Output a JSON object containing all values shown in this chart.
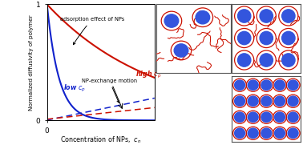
{
  "fig_width": 3.78,
  "fig_height": 1.81,
  "dpi": 100,
  "bg_color": "#ffffff",
  "plot_bg": "#ffffff",
  "red_color": "#cc1100",
  "blue_color": "#0022cc",
  "high_cp_solid_color": "#cc1100",
  "low_cp_solid_color": "#1122cc",
  "dash_red_color": "#cc1100",
  "dash_blue_color": "#1122cc",
  "ylabel": "Normalized diffusivity of polymer",
  "xlabel": "Concentration of NPs,  $c_n$",
  "high_cp_label": "high $c_p$",
  "low_cp_label": "low $c_p$",
  "adsorption_text": "adsorption effect of NPs",
  "npe_text": "NP-exchange motion",
  "np_fill": "#3355dd",
  "np_ring": "#cc1100",
  "panel_border": "#888888"
}
